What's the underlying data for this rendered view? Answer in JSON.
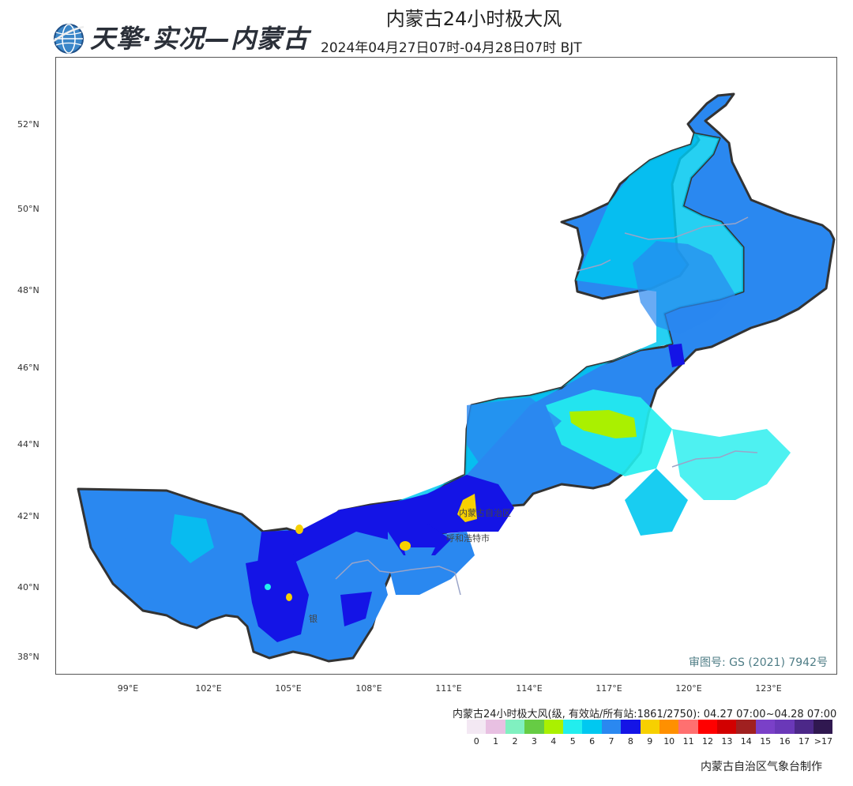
{
  "header": {
    "logo_text": "天擎·实况—内蒙古",
    "title": "内蒙古24小时极大风",
    "time_range": "2024年04月27日07时-04月28日07时 BJT"
  },
  "map": {
    "lat_labels": [
      "52°N",
      "50°N",
      "48°N",
      "46°N",
      "44°N",
      "42°N",
      "40°N",
      "38°N"
    ],
    "lon_labels": [
      "99°E",
      "102°E",
      "105°E",
      "108°E",
      "111°E",
      "114°E",
      "117°E",
      "120°E",
      "123°E"
    ],
    "city_labels": [
      "内蒙古自治区",
      "呼和浩特市",
      "银"
    ],
    "review_number": "审图号: GS (2021) 7942号"
  },
  "legend": {
    "title": "内蒙古24小时极大风(级, 有效站/所有站:1861/2750): 04.27 07:00~04.28 07:00",
    "levels": [
      "0",
      "1",
      "2",
      "3",
      "4",
      "5",
      "6",
      "7",
      "8",
      "9",
      "10",
      "11",
      "12",
      "13",
      "14",
      "15",
      "16",
      "17",
      ">17"
    ],
    "colors": [
      "#f3e8f3",
      "#e8c0e2",
      "#80f0c0",
      "#66cc44",
      "#aaf000",
      "#22eeee",
      "#00c8f0",
      "#2a88f0",
      "#1414e6",
      "#f7d000",
      "#ff9000",
      "#ff7070",
      "#ff0000",
      "#d20000",
      "#a02020",
      "#7a40c8",
      "#6a38b8",
      "#4c2888",
      "#301850"
    ]
  },
  "footer": {
    "credit": "内蒙古自治区气象台制作"
  }
}
